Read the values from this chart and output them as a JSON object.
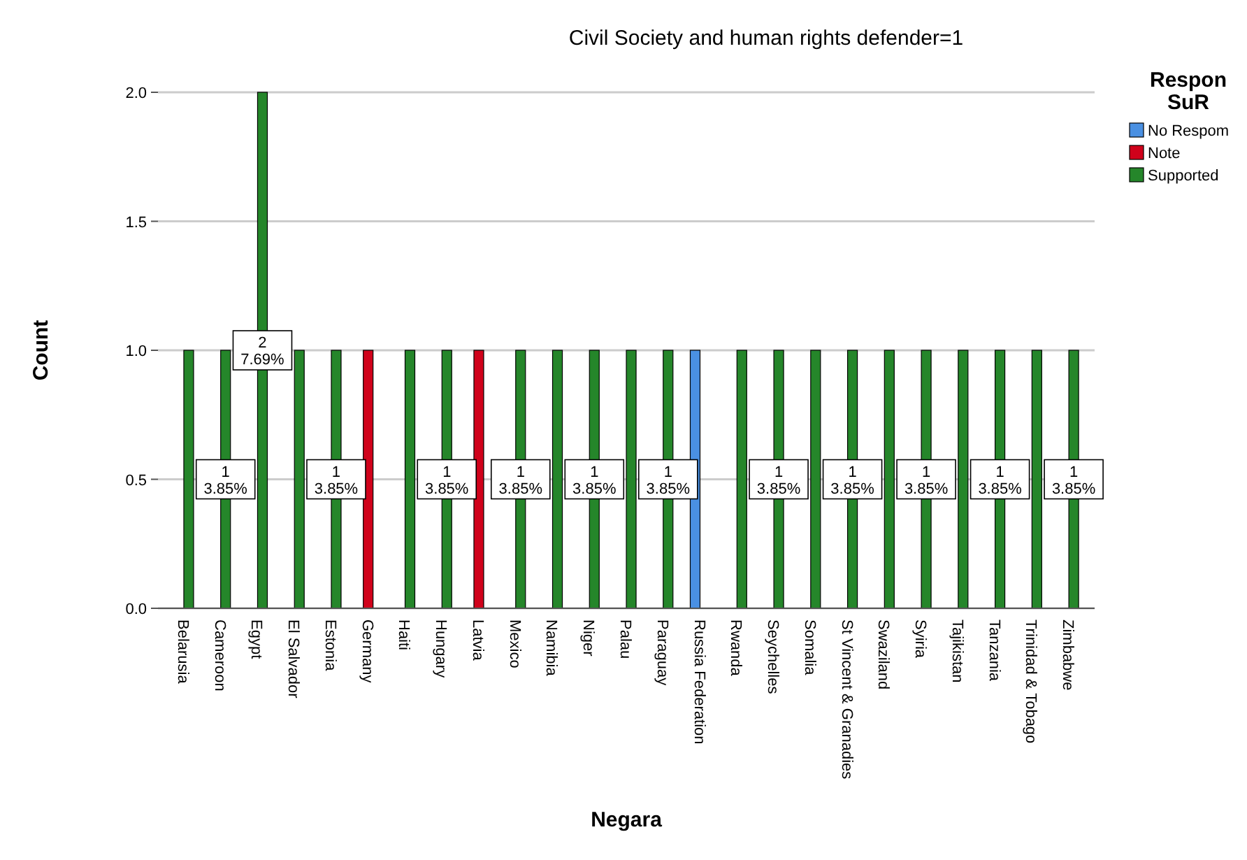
{
  "chart_data": {
    "type": "bar",
    "title": "Civil Society and human rights defender=1",
    "xlabel": "Negara",
    "ylabel": "Count",
    "legend_title": "Respon\nSuR",
    "legend": "top right",
    "grid": "y",
    "categories": [
      "Belarusia",
      "Cameroon",
      "Egypt",
      "El Salvador",
      "Estonia",
      "Germany",
      "Haiti",
      "Hungary",
      "Latvia",
      "Mexico",
      "Namibia",
      "Niger",
      "Palau",
      "Paraguay",
      "Russia Federation",
      "Rwanda",
      "Seychelles",
      "Somalia",
      "St Vincent & Granadies",
      "Swaziland",
      "Syiria",
      "Tajikistan",
      "Tanzania",
      "Trinidad & Tobago",
      "Zimbabwe"
    ],
    "ylim": [
      0,
      2
    ],
    "yticks": [
      {
        "value": 0,
        "label": "0.0"
      },
      {
        "value": 0.5,
        "label": "0.5"
      },
      {
        "value": 1,
        "label": "1.0"
      },
      {
        "value": 1.5,
        "label": "1.5"
      },
      {
        "value": 2,
        "label": "2.0"
      }
    ],
    "series": [
      {
        "name": "No Respom",
        "color": "#4a90e2",
        "values": [
          null,
          null,
          null,
          null,
          null,
          null,
          null,
          null,
          null,
          null,
          null,
          null,
          null,
          null,
          1,
          null,
          null,
          null,
          null,
          null,
          null,
          null,
          null,
          null,
          null
        ]
      },
      {
        "name": "Note",
        "color": "#d0021b",
        "values": [
          null,
          null,
          null,
          null,
          null,
          1,
          null,
          null,
          1,
          null,
          null,
          null,
          null,
          null,
          null,
          null,
          null,
          null,
          null,
          null,
          null,
          null,
          null,
          null,
          null
        ]
      },
      {
        "name": "Supported",
        "color": "#25862a",
        "values": [
          1,
          1,
          2,
          1,
          1,
          null,
          1,
          1,
          null,
          1,
          1,
          1,
          1,
          1,
          null,
          1,
          1,
          1,
          1,
          1,
          1,
          1,
          1,
          1,
          1
        ],
        "value_labels": [
          null,
          "1\n3.85%",
          "2\n7.69%",
          null,
          "1\n3.85%",
          null,
          null,
          "1\n3.85%",
          null,
          "1\n3.85%",
          null,
          "1\n3.85%",
          null,
          "1\n3.85%",
          null,
          null,
          "1\n3.85%",
          null,
          "1\n3.85%",
          null,
          "1\n3.85%",
          null,
          "1\n3.85%",
          null,
          "1\n3.85%"
        ]
      }
    ]
  }
}
